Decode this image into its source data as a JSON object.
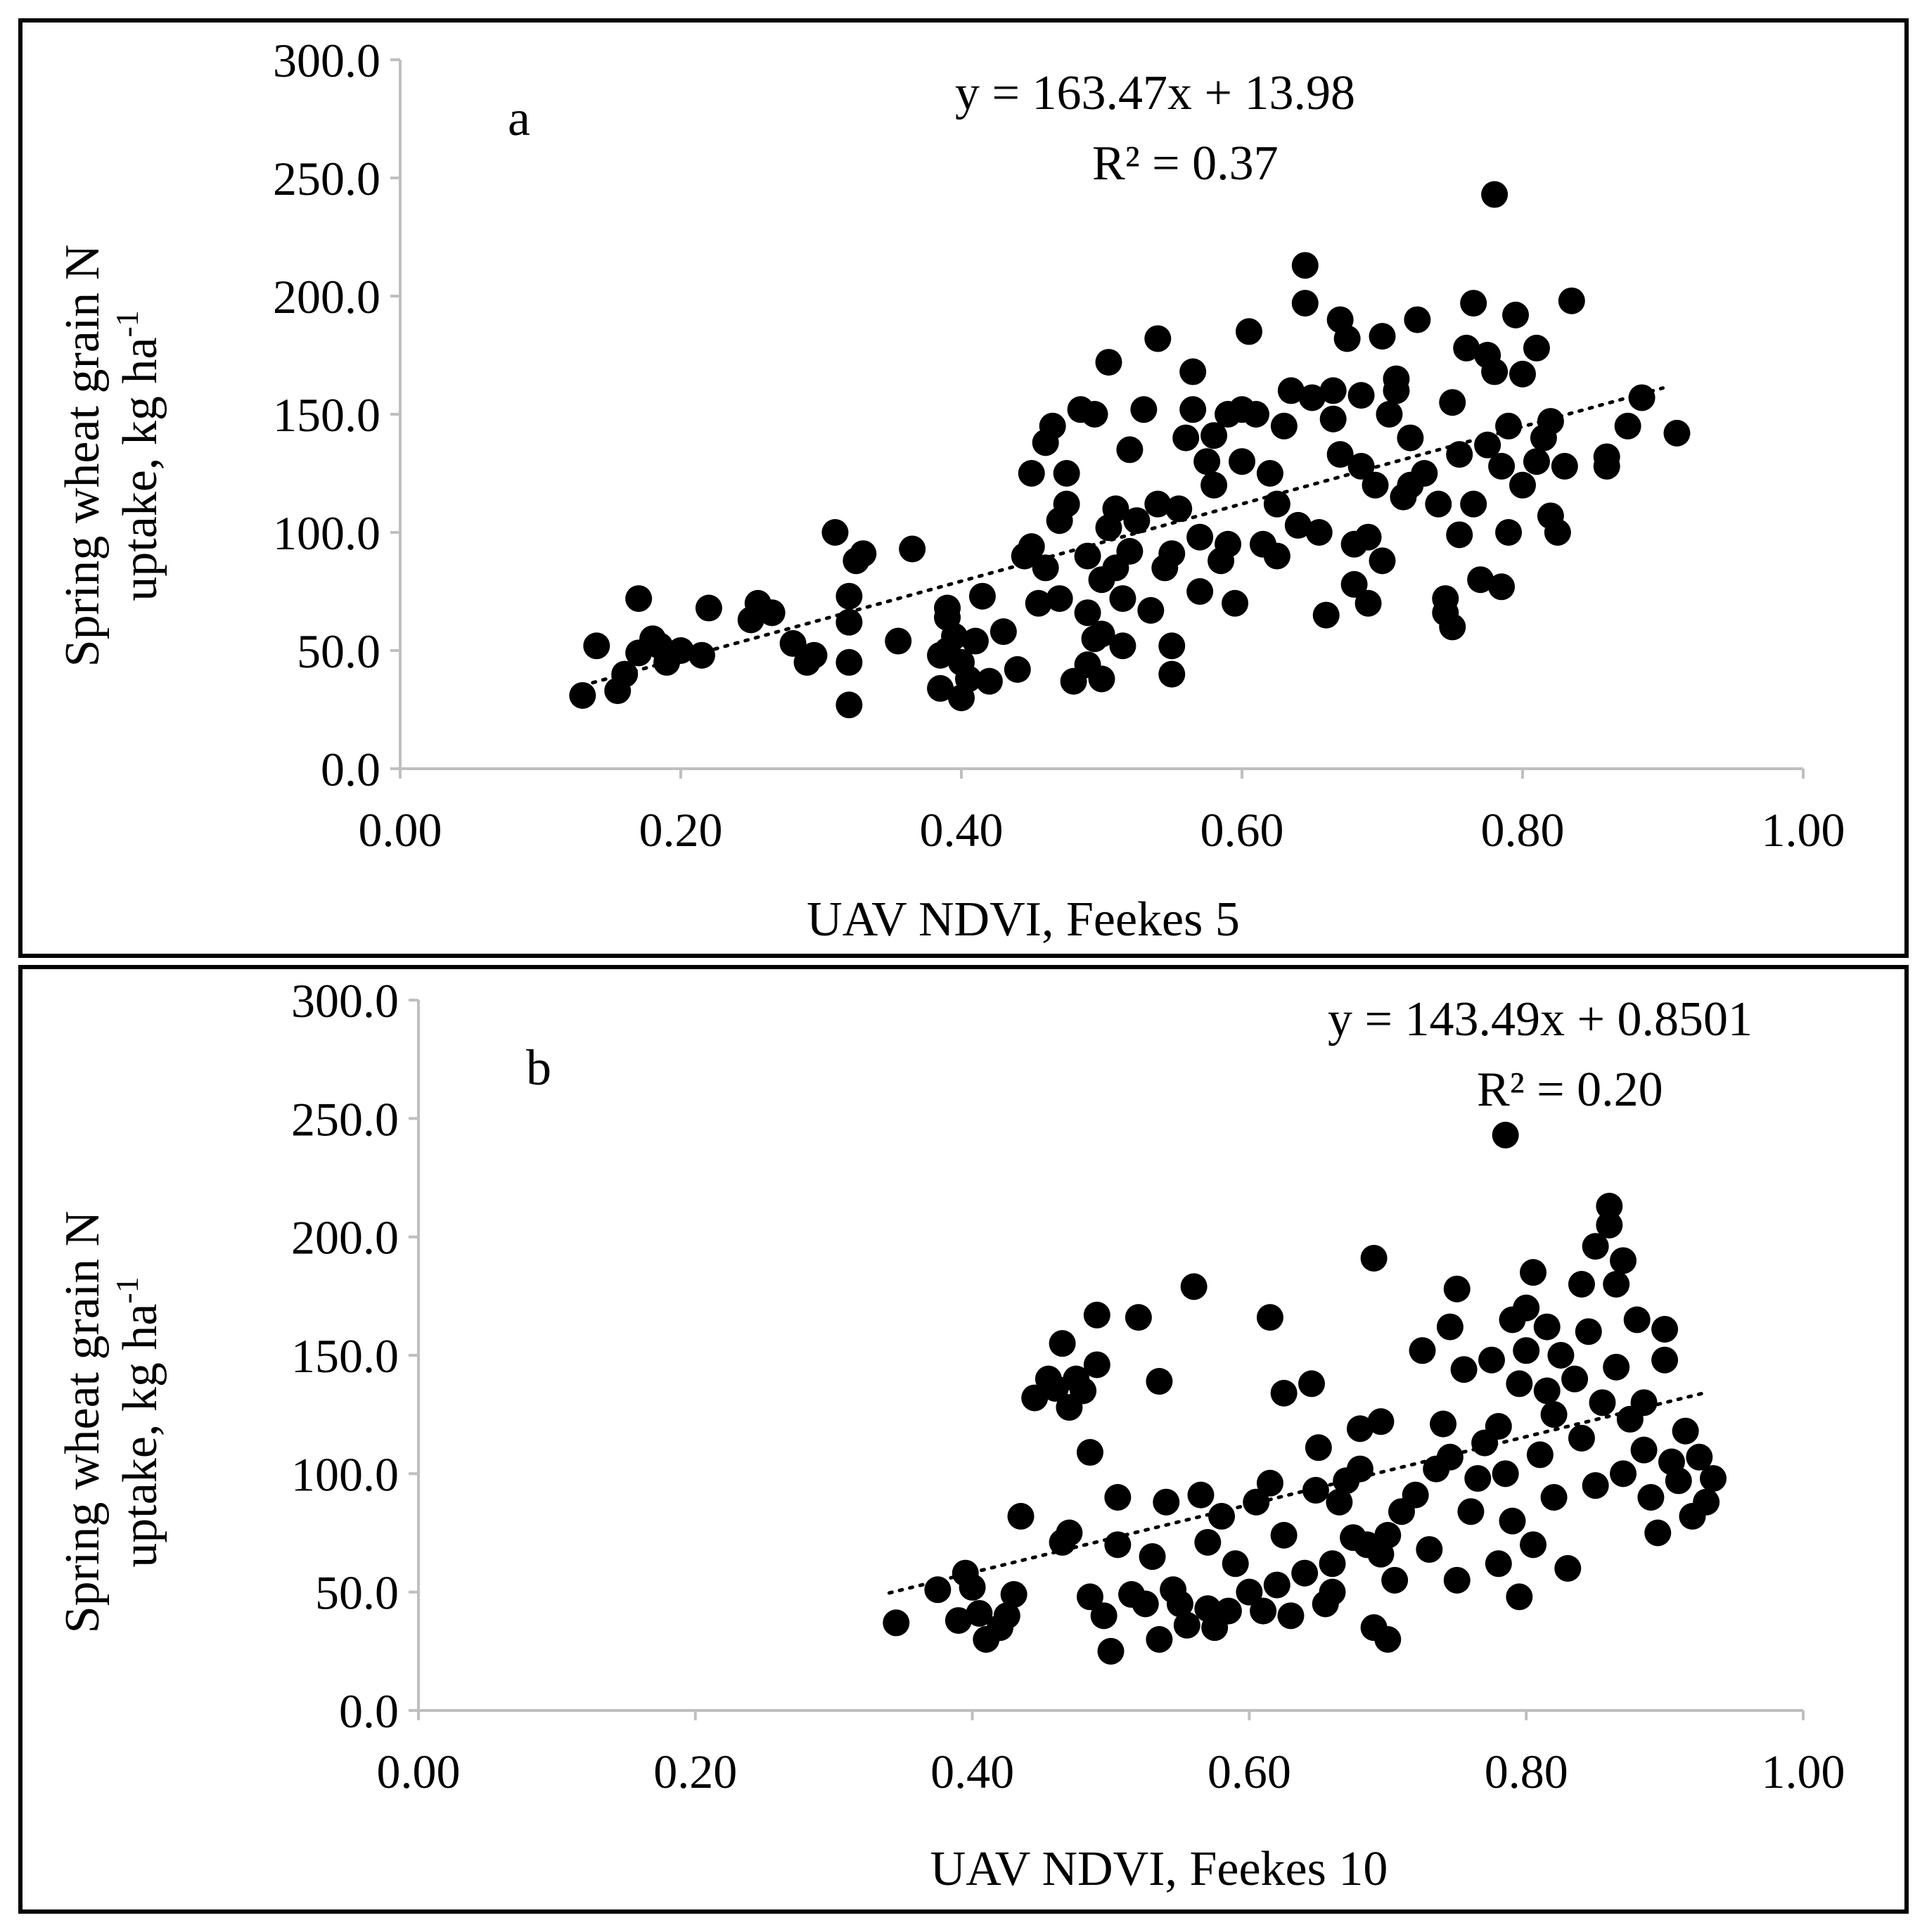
{
  "colors": {
    "points": "#000000",
    "axis": "#bfbfbf",
    "frame": "#000000",
    "background": "#ffffff"
  },
  "chart_data": [
    {
      "type": "scatter",
      "panel_label": "a",
      "xlabel": "UAV NDVI, Feekes 5",
      "ylabel_line1": "Spring wheat grain N",
      "ylabel_line2_main": "uptake, kg ha",
      "ylabel_line2_sup": "-1",
      "xlim": [
        0,
        1
      ],
      "ylim": [
        0,
        300
      ],
      "x_ticks": [
        "0.00",
        "0.20",
        "0.40",
        "0.60",
        "0.80",
        "1.00"
      ],
      "y_ticks": [
        "0.0",
        "50.0",
        "100.0",
        "150.0",
        "200.0",
        "250.0",
        "300.0"
      ],
      "equation": "y = 163.47x + 13.98",
      "r_squared": "R² = 0.37",
      "trendline": {
        "slope": 163.47,
        "intercept": 13.98,
        "x_range": [
          0.13,
          0.9
        ]
      },
      "points": [
        [
          0.13,
          31
        ],
        [
          0.14,
          52
        ],
        [
          0.155,
          33
        ],
        [
          0.16,
          40
        ],
        [
          0.17,
          72
        ],
        [
          0.17,
          49
        ],
        [
          0.18,
          55
        ],
        [
          0.185,
          52
        ],
        [
          0.19,
          45
        ],
        [
          0.2,
          50
        ],
        [
          0.215,
          48
        ],
        [
          0.22,
          68
        ],
        [
          0.25,
          63
        ],
        [
          0.255,
          70
        ],
        [
          0.265,
          66
        ],
        [
          0.28,
          53
        ],
        [
          0.29,
          45
        ],
        [
          0.295,
          48
        ],
        [
          0.31,
          100
        ],
        [
          0.32,
          27
        ],
        [
          0.32,
          45
        ],
        [
          0.32,
          62
        ],
        [
          0.32,
          73
        ],
        [
          0.325,
          88
        ],
        [
          0.33,
          91
        ],
        [
          0.355,
          54
        ],
        [
          0.365,
          93
        ],
        [
          0.385,
          34
        ],
        [
          0.385,
          48
        ],
        [
          0.39,
          50
        ],
        [
          0.39,
          64
        ],
        [
          0.39,
          68
        ],
        [
          0.395,
          56
        ],
        [
          0.4,
          30
        ],
        [
          0.4,
          45
        ],
        [
          0.405,
          38
        ],
        [
          0.41,
          54
        ],
        [
          0.415,
          73
        ],
        [
          0.42,
          37
        ],
        [
          0.43,
          58
        ],
        [
          0.44,
          42
        ],
        [
          0.445,
          90
        ],
        [
          0.45,
          94
        ],
        [
          0.45,
          125
        ],
        [
          0.455,
          70
        ],
        [
          0.46,
          85
        ],
        [
          0.46,
          138
        ],
        [
          0.465,
          145
        ],
        [
          0.47,
          72
        ],
        [
          0.47,
          105
        ],
        [
          0.475,
          112
        ],
        [
          0.475,
          125
        ],
        [
          0.48,
          37
        ],
        [
          0.485,
          152
        ],
        [
          0.49,
          44
        ],
        [
          0.49,
          66
        ],
        [
          0.49,
          90
        ],
        [
          0.495,
          150
        ],
        [
          0.495,
          55
        ],
        [
          0.5,
          57
        ],
        [
          0.5,
          80
        ],
        [
          0.5,
          38
        ],
        [
          0.505,
          102
        ],
        [
          0.505,
          172
        ],
        [
          0.51,
          85
        ],
        [
          0.51,
          110
        ],
        [
          0.515,
          52
        ],
        [
          0.515,
          72
        ],
        [
          0.52,
          92
        ],
        [
          0.52,
          135
        ],
        [
          0.525,
          105
        ],
        [
          0.53,
          152
        ],
        [
          0.535,
          67
        ],
        [
          0.54,
          112
        ],
        [
          0.54,
          182
        ],
        [
          0.545,
          85
        ],
        [
          0.55,
          40
        ],
        [
          0.55,
          52
        ],
        [
          0.55,
          91
        ],
        [
          0.555,
          110
        ],
        [
          0.56,
          140
        ],
        [
          0.565,
          168
        ],
        [
          0.565,
          152
        ],
        [
          0.57,
          75
        ],
        [
          0.57,
          98
        ],
        [
          0.575,
          130
        ],
        [
          0.58,
          120
        ],
        [
          0.58,
          141
        ],
        [
          0.585,
          88
        ],
        [
          0.59,
          95
        ],
        [
          0.59,
          150
        ],
        [
          0.595,
          70
        ],
        [
          0.6,
          152
        ],
        [
          0.6,
          130
        ],
        [
          0.605,
          185
        ],
        [
          0.61,
          150
        ],
        [
          0.615,
          95
        ],
        [
          0.62,
          125
        ],
        [
          0.625,
          90
        ],
        [
          0.625,
          112
        ],
        [
          0.63,
          145
        ],
        [
          0.635,
          160
        ],
        [
          0.64,
          103
        ],
        [
          0.645,
          197
        ],
        [
          0.645,
          213
        ],
        [
          0.65,
          157
        ],
        [
          0.655,
          100
        ],
        [
          0.66,
          65
        ],
        [
          0.665,
          148
        ],
        [
          0.665,
          160
        ],
        [
          0.67,
          133
        ],
        [
          0.67,
          190
        ],
        [
          0.675,
          182
        ],
        [
          0.68,
          78
        ],
        [
          0.68,
          95
        ],
        [
          0.685,
          158
        ],
        [
          0.685,
          128
        ],
        [
          0.69,
          70
        ],
        [
          0.69,
          98
        ],
        [
          0.695,
          120
        ],
        [
          0.7,
          88
        ],
        [
          0.7,
          183
        ],
        [
          0.705,
          150
        ],
        [
          0.71,
          160
        ],
        [
          0.71,
          165
        ],
        [
          0.715,
          115
        ],
        [
          0.72,
          140
        ],
        [
          0.72,
          120
        ],
        [
          0.725,
          190
        ],
        [
          0.73,
          125
        ],
        [
          0.74,
          112
        ],
        [
          0.745,
          72
        ],
        [
          0.745,
          66
        ],
        [
          0.75,
          155
        ],
        [
          0.75,
          60
        ],
        [
          0.755,
          99
        ],
        [
          0.755,
          133
        ],
        [
          0.76,
          178
        ],
        [
          0.765,
          197
        ],
        [
          0.765,
          112
        ],
        [
          0.77,
          80
        ],
        [
          0.775,
          137
        ],
        [
          0.775,
          175
        ],
        [
          0.78,
          168
        ],
        [
          0.78,
          243
        ],
        [
          0.785,
          77
        ],
        [
          0.785,
          128
        ],
        [
          0.79,
          145
        ],
        [
          0.79,
          100
        ],
        [
          0.795,
          192
        ],
        [
          0.8,
          167
        ],
        [
          0.8,
          120
        ],
        [
          0.81,
          130
        ],
        [
          0.81,
          178
        ],
        [
          0.815,
          140
        ],
        [
          0.82,
          107
        ],
        [
          0.82,
          147
        ],
        [
          0.825,
          100
        ],
        [
          0.83,
          128
        ],
        [
          0.835,
          198
        ],
        [
          0.86,
          128
        ],
        [
          0.86,
          132
        ],
        [
          0.875,
          145
        ],
        [
          0.885,
          157
        ],
        [
          0.91,
          142
        ]
      ]
    },
    {
      "type": "scatter",
      "panel_label": "b",
      "xlabel": "UAV NDVI, Feekes 10",
      "ylabel_line1": "Spring wheat grain N",
      "ylabel_line2_main": "uptake, kg ha",
      "ylabel_line2_sup": "-1",
      "xlim": [
        0,
        1
      ],
      "ylim": [
        0,
        300
      ],
      "x_ticks": [
        "0.00",
        "0.20",
        "0.40",
        "0.60",
        "0.80",
        "1.00"
      ],
      "y_ticks": [
        "0.0",
        "50.0",
        "100.0",
        "150.0",
        "200.0",
        "250.0",
        "300.0"
      ],
      "equation": "y = 143.49x + 0.8501",
      "r_squared": "R² = 0.20",
      "trendline": {
        "slope": 143.49,
        "intercept": 0.8501,
        "x_range": [
          0.34,
          0.93
        ]
      },
      "points": [
        [
          0.345,
          37
        ],
        [
          0.375,
          51
        ],
        [
          0.39,
          38
        ],
        [
          0.395,
          58
        ],
        [
          0.4,
          52
        ],
        [
          0.405,
          41
        ],
        [
          0.41,
          30
        ],
        [
          0.42,
          35
        ],
        [
          0.425,
          40
        ],
        [
          0.43,
          49
        ],
        [
          0.435,
          82
        ],
        [
          0.445,
          132
        ],
        [
          0.455,
          140
        ],
        [
          0.46,
          136
        ],
        [
          0.465,
          71
        ],
        [
          0.465,
          155
        ],
        [
          0.47,
          128
        ],
        [
          0.47,
          75
        ],
        [
          0.475,
          140
        ],
        [
          0.48,
          135
        ],
        [
          0.485,
          48
        ],
        [
          0.485,
          109
        ],
        [
          0.49,
          146
        ],
        [
          0.49,
          167
        ],
        [
          0.495,
          40
        ],
        [
          0.5,
          25
        ],
        [
          0.505,
          70
        ],
        [
          0.505,
          90
        ],
        [
          0.515,
          49
        ],
        [
          0.52,
          166
        ],
        [
          0.525,
          45
        ],
        [
          0.53,
          65
        ],
        [
          0.535,
          139
        ],
        [
          0.535,
          30
        ],
        [
          0.54,
          88
        ],
        [
          0.545,
          51
        ],
        [
          0.55,
          45
        ],
        [
          0.555,
          36
        ],
        [
          0.56,
          179
        ],
        [
          0.565,
          91
        ],
        [
          0.57,
          71
        ],
        [
          0.57,
          43
        ],
        [
          0.575,
          35
        ],
        [
          0.58,
          82
        ],
        [
          0.585,
          42
        ],
        [
          0.59,
          62
        ],
        [
          0.6,
          50
        ],
        [
          0.605,
          88
        ],
        [
          0.61,
          42
        ],
        [
          0.615,
          96
        ],
        [
          0.615,
          166
        ],
        [
          0.62,
          53
        ],
        [
          0.625,
          74
        ],
        [
          0.625,
          134
        ],
        [
          0.63,
          40
        ],
        [
          0.64,
          58
        ],
        [
          0.645,
          138
        ],
        [
          0.648,
          93
        ],
        [
          0.65,
          111
        ],
        [
          0.655,
          45
        ],
        [
          0.66,
          62
        ],
        [
          0.66,
          50
        ],
        [
          0.665,
          88
        ],
        [
          0.67,
          97
        ],
        [
          0.675,
          73
        ],
        [
          0.68,
          119
        ],
        [
          0.68,
          102
        ],
        [
          0.685,
          70
        ],
        [
          0.69,
          35
        ],
        [
          0.69,
          191
        ],
        [
          0.695,
          66
        ],
        [
          0.695,
          122
        ],
        [
          0.7,
          30
        ],
        [
          0.7,
          74
        ],
        [
          0.705,
          55
        ],
        [
          0.71,
          84
        ],
        [
          0.72,
          91
        ],
        [
          0.725,
          152
        ],
        [
          0.73,
          68
        ],
        [
          0.735,
          102
        ],
        [
          0.74,
          121
        ],
        [
          0.745,
          107
        ],
        [
          0.745,
          162
        ],
        [
          0.75,
          178
        ],
        [
          0.75,
          55
        ],
        [
          0.755,
          144
        ],
        [
          0.76,
          84
        ],
        [
          0.765,
          98
        ],
        [
          0.77,
          113
        ],
        [
          0.775,
          148
        ],
        [
          0.78,
          62
        ],
        [
          0.78,
          120
        ],
        [
          0.785,
          243
        ],
        [
          0.785,
          100
        ],
        [
          0.79,
          165
        ],
        [
          0.79,
          80
        ],
        [
          0.795,
          138
        ],
        [
          0.795,
          48
        ],
        [
          0.8,
          170
        ],
        [
          0.8,
          152
        ],
        [
          0.805,
          185
        ],
        [
          0.805,
          70
        ],
        [
          0.81,
          108
        ],
        [
          0.815,
          135
        ],
        [
          0.815,
          162
        ],
        [
          0.82,
          125
        ],
        [
          0.82,
          90
        ],
        [
          0.825,
          150
        ],
        [
          0.83,
          60
        ],
        [
          0.835,
          140
        ],
        [
          0.84,
          180
        ],
        [
          0.84,
          115
        ],
        [
          0.845,
          160
        ],
        [
          0.85,
          196
        ],
        [
          0.85,
          95
        ],
        [
          0.855,
          130
        ],
        [
          0.86,
          205
        ],
        [
          0.86,
          213
        ],
        [
          0.865,
          180
        ],
        [
          0.865,
          145
        ],
        [
          0.87,
          190
        ],
        [
          0.87,
          100
        ],
        [
          0.875,
          123
        ],
        [
          0.88,
          165
        ],
        [
          0.885,
          130
        ],
        [
          0.885,
          110
        ],
        [
          0.89,
          90
        ],
        [
          0.895,
          75
        ],
        [
          0.9,
          161
        ],
        [
          0.9,
          148
        ],
        [
          0.905,
          105
        ],
        [
          0.91,
          97
        ],
        [
          0.915,
          118
        ],
        [
          0.92,
          82
        ],
        [
          0.925,
          107
        ],
        [
          0.93,
          88
        ],
        [
          0.935,
          98
        ]
      ]
    }
  ]
}
